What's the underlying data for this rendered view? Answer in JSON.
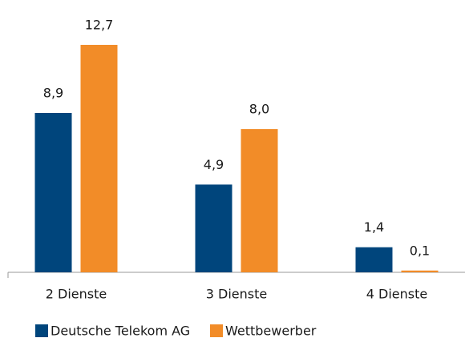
{
  "chart_data": {
    "type": "bar",
    "categories": [
      "2 Dienste",
      "3 Dienste",
      "4 Dienste"
    ],
    "series": [
      {
        "name": "Deutsche Telekom AG",
        "color": "#00457c",
        "values": [
          8.9,
          4.9,
          1.4
        ],
        "value_labels": [
          "8,9",
          "4,9",
          "1,4"
        ]
      },
      {
        "name": "Wettbewerber",
        "color": "#f28c28",
        "values": [
          12.7,
          8.0,
          0.1
        ],
        "value_labels": [
          "12,7",
          "8,0",
          "0,1"
        ]
      }
    ],
    "ylim": [
      0,
      13
    ],
    "grid": false,
    "legend": "bottom"
  }
}
